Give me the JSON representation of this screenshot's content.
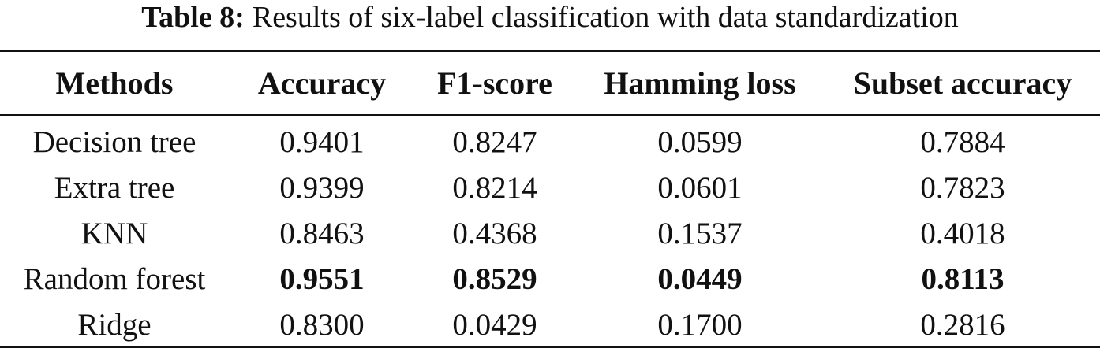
{
  "caption": {
    "label": "Table 8:",
    "text": "Results of six-label classification with data standardization"
  },
  "table": {
    "columns": [
      "Methods",
      "Accuracy",
      "F1-score",
      "Hamming loss",
      "Subset accuracy"
    ],
    "rows": [
      {
        "cells": [
          "Decision tree",
          "0.9401",
          "0.8247",
          "0.0599",
          "0.7884"
        ],
        "bold": false
      },
      {
        "cells": [
          "Extra tree",
          "0.9399",
          "0.8214",
          "0.0601",
          "0.7823"
        ],
        "bold": false
      },
      {
        "cells": [
          "KNN",
          "0.8463",
          "0.4368",
          "0.1537",
          "0.4018"
        ],
        "bold": false
      },
      {
        "cells": [
          "Random forest",
          "0.9551",
          "0.8529",
          "0.0449",
          "0.8113"
        ],
        "bold": true
      },
      {
        "cells": [
          "Ridge",
          "0.8300",
          "0.0429",
          "0.1700",
          "0.2816"
        ],
        "bold": false
      }
    ]
  }
}
